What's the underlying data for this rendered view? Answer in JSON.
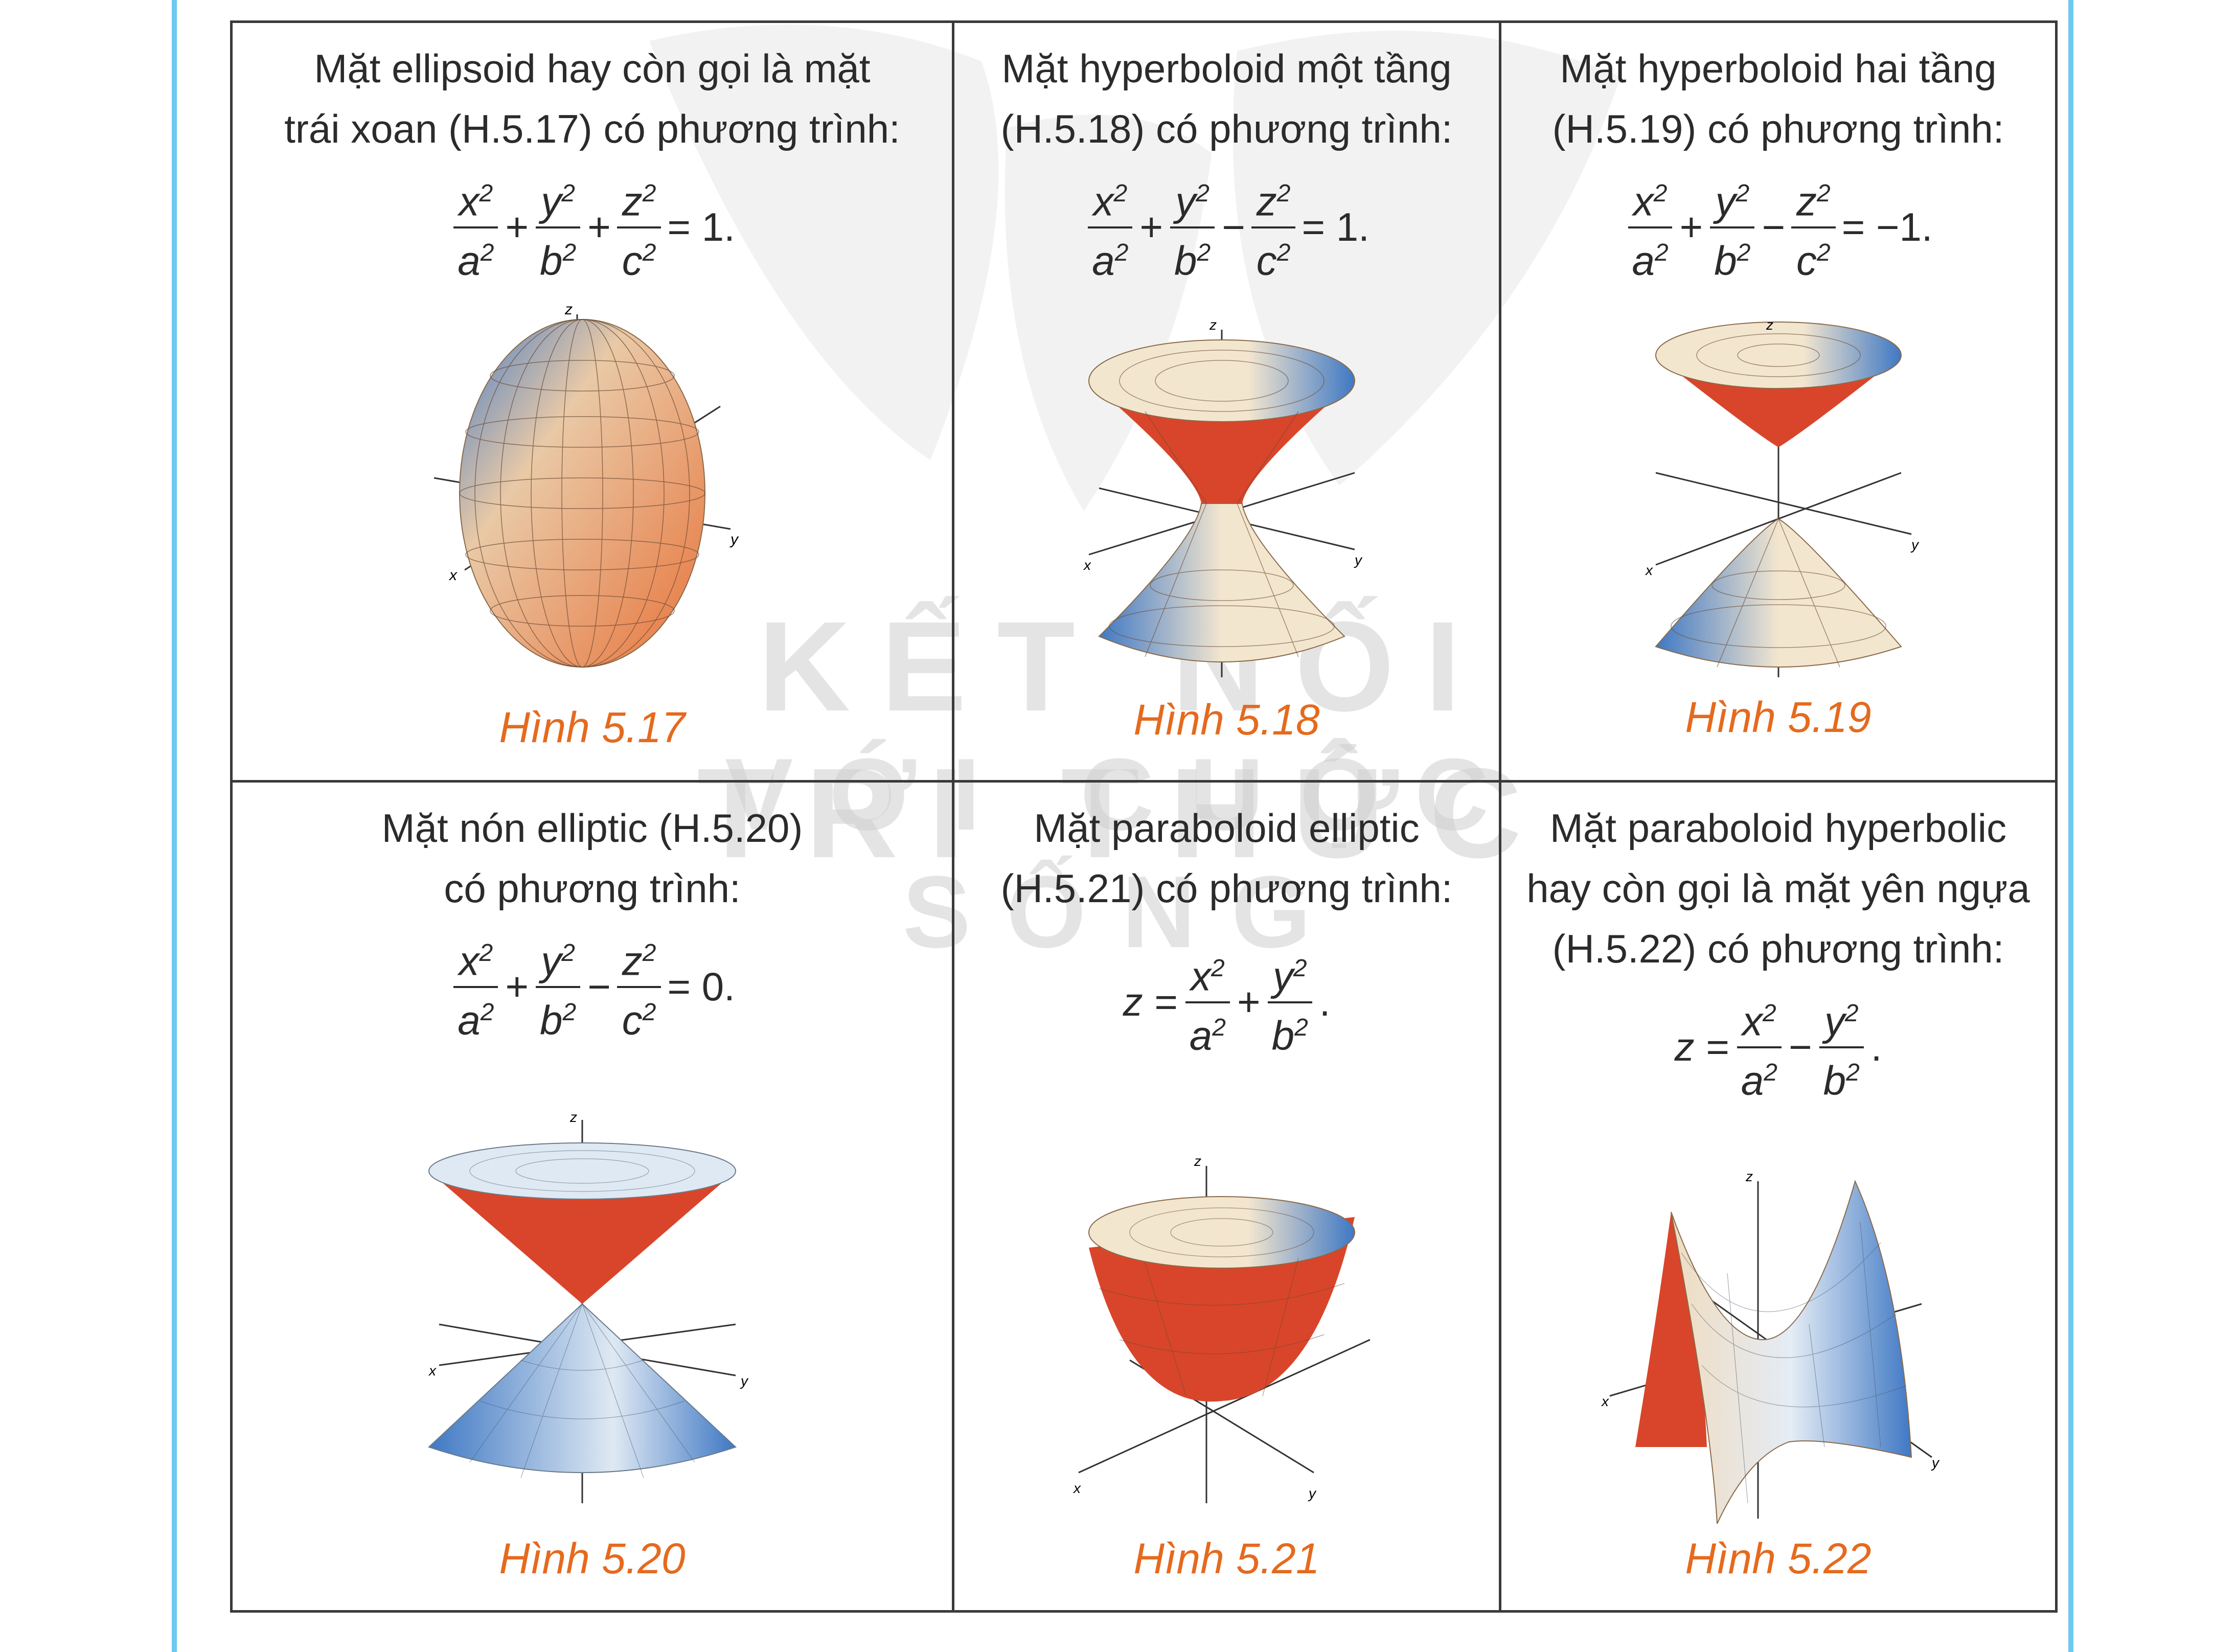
{
  "cells": [
    {
      "desc1": "Mặt ellipsoid hay còn gọi là mặt",
      "desc2": "trái xoan (H.5.17) có phương trình:",
      "eq": {
        "t1": "x",
        "t2": "y",
        "t3": "z",
        "op1": "+",
        "op2": "+",
        "rhs": "= 1."
      },
      "caption": "Hình 5.17"
    },
    {
      "desc1": "Mặt hyperboloid một tầng",
      "desc2": "(H.5.18) có phương trình:",
      "eq": {
        "t1": "x",
        "t2": "y",
        "t3": "z",
        "op1": "+",
        "op2": "−",
        "rhs": "= 1."
      },
      "caption": "Hình 5.18"
    },
    {
      "desc1": "Mặt hyperboloid hai tầng",
      "desc2": "(H.5.19) có phương trình:",
      "eq": {
        "t1": "x",
        "t2": "y",
        "t3": "z",
        "op1": "+",
        "op2": "−",
        "rhs": "= −1."
      },
      "caption": "Hình 5.19"
    },
    {
      "desc1": "Mặt nón elliptic (H.5.20)",
      "desc2": "có phương trình:",
      "eq": {
        "t1": "x",
        "t2": "y",
        "t3": "z",
        "op1": "+",
        "op2": "−",
        "rhs": "= 0."
      },
      "caption": "Hình 5.20"
    },
    {
      "desc1": "Mặt paraboloid elliptic",
      "desc2": "(H.5.21) có phương trình:",
      "eq": {
        "lhs": "z =",
        "t1": "x",
        "t2": "y",
        "op1": "+",
        "rhs": "."
      },
      "caption": "Hình 5.21"
    },
    {
      "desc1": "Mặt paraboloid hyperbolic",
      "desc2": "hay còn gọi là mặt yên ngựa",
      "desc3": "(H.5.22) có phương trình:",
      "eq": {
        "lhs": "z =",
        "t1": "x",
        "t2": "y",
        "op1": "−",
        "rhs": "."
      },
      "caption": "Hình 5.22"
    }
  ],
  "denominators": {
    "a": "a",
    "b": "b",
    "c": "c"
  },
  "exponent": "2",
  "axis_labels": {
    "x": "x",
    "y": "y",
    "z": "z"
  },
  "watermark": {
    "line1": "KẾT NỐI TRI THỨC",
    "line2": "VỚI CUỘC SỐNG"
  },
  "colors": {
    "caption": "#e56a1e",
    "frame": "#6ec9ee",
    "surface_warm": "#d9452a",
    "surface_cool": "#3f78c4"
  }
}
